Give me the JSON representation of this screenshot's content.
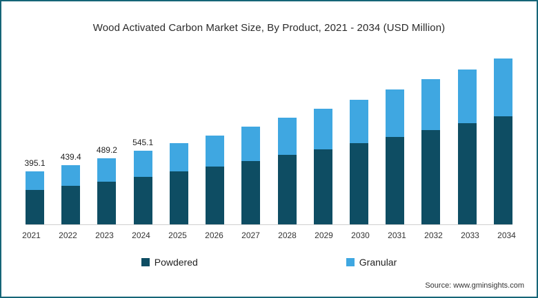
{
  "chart_data": {
    "type": "bar",
    "stacked": true,
    "title": "Wood Activated Carbon Market Size, By Product, 2021 - 2034 (USD Million)",
    "categories": [
      "2021",
      "2022",
      "2023",
      "2024",
      "2025",
      "2026",
      "2027",
      "2028",
      "2029",
      "2030",
      "2031",
      "2032",
      "2033",
      "2034"
    ],
    "series": [
      {
        "name": "Powdered",
        "color": "#0e4d63",
        "values": [
          257.0,
          286.0,
          318.0,
          354.0,
          391.0,
          430.0,
          471.0,
          513.0,
          557.0,
          602.0,
          650.0,
          699.0,
          749.0,
          800.0
        ]
      },
      {
        "name": "Granular",
        "color": "#3fa7e1",
        "values": [
          138.1,
          153.4,
          171.2,
          191.1,
          209.0,
          230.0,
          254.0,
          277.0,
          298.0,
          323.0,
          350.0,
          376.0,
          401.0,
          430.0
        ]
      }
    ],
    "total_labels": [
      "395.1",
      "439.4",
      "489.2",
      "545.1",
      "",
      "",
      "",
      "",
      "",
      "",
      "",
      "",
      "",
      ""
    ],
    "ylim": [
      0,
      1260
    ],
    "grid": false,
    "legend_position": "bottom",
    "xlabel": "",
    "ylabel": ""
  },
  "legend": {
    "powdered_label": "Powdered",
    "granular_label": "Granular"
  },
  "source": {
    "text": "Source: www.gminsights.com"
  },
  "colors": {
    "border": "#156577",
    "powdered": "#0e4d63",
    "granular": "#3fa7e1"
  }
}
